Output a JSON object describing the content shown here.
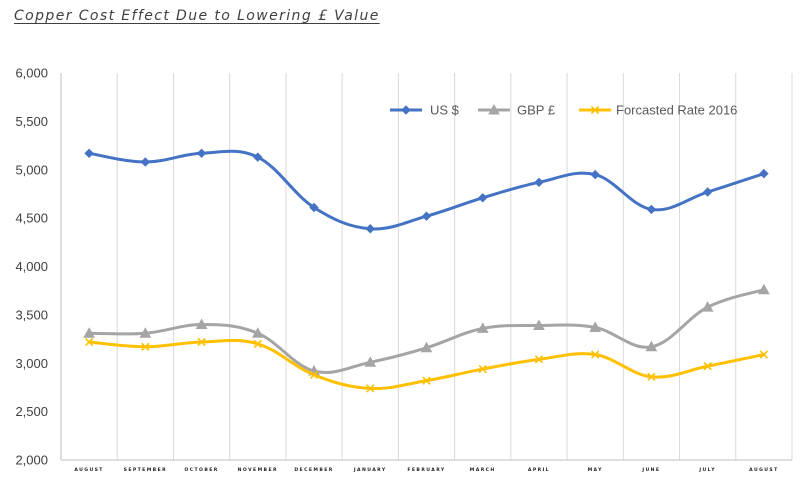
{
  "chart_data": {
    "type": "line",
    "title": "Copper Cost Effect  Due to Lowering £ Value",
    "xlabel": "",
    "ylabel": "",
    "categories": [
      "AUGUST",
      "SEPTEMBER",
      "OCTOBER",
      "NOVEMBER",
      "DECEMBER",
      "JANUARY",
      "FEBRUARY",
      "MARCH",
      "APRIL",
      "MAY",
      "JUNE",
      "JULY",
      "AUGUST"
    ],
    "ylim": [
      2000,
      6000
    ],
    "yticks": [
      2000,
      2500,
      3000,
      3500,
      4000,
      4500,
      5000,
      5500,
      6000
    ],
    "ytick_labels": [
      "2,000",
      "2,500",
      "3,000",
      "3,500",
      "4,000",
      "4,500",
      "5,000",
      "5,500",
      "6,000"
    ],
    "grid": "vertical",
    "legend_position": "top-right",
    "smooth": true,
    "series": [
      {
        "name": "US $",
        "color": "#4472C4",
        "marker": "diamond",
        "values": [
          5170,
          5080,
          5170,
          5130,
          4610,
          4390,
          4520,
          4710,
          4870,
          4950,
          4590,
          4770,
          4960
        ]
      },
      {
        "name": "GBP £",
        "color": "#A5A5A5",
        "marker": "triangle",
        "values": [
          3310,
          3310,
          3400,
          3310,
          2920,
          3010,
          3160,
          3360,
          3390,
          3370,
          3170,
          3580,
          3760
        ]
      },
      {
        "name": "Forcasted Rate 2016",
        "color": "#FFC000",
        "marker": "x",
        "values": [
          3220,
          3170,
          3220,
          3200,
          2880,
          2740,
          2820,
          2940,
          3040,
          3090,
          2860,
          2970,
          3090
        ]
      }
    ]
  }
}
